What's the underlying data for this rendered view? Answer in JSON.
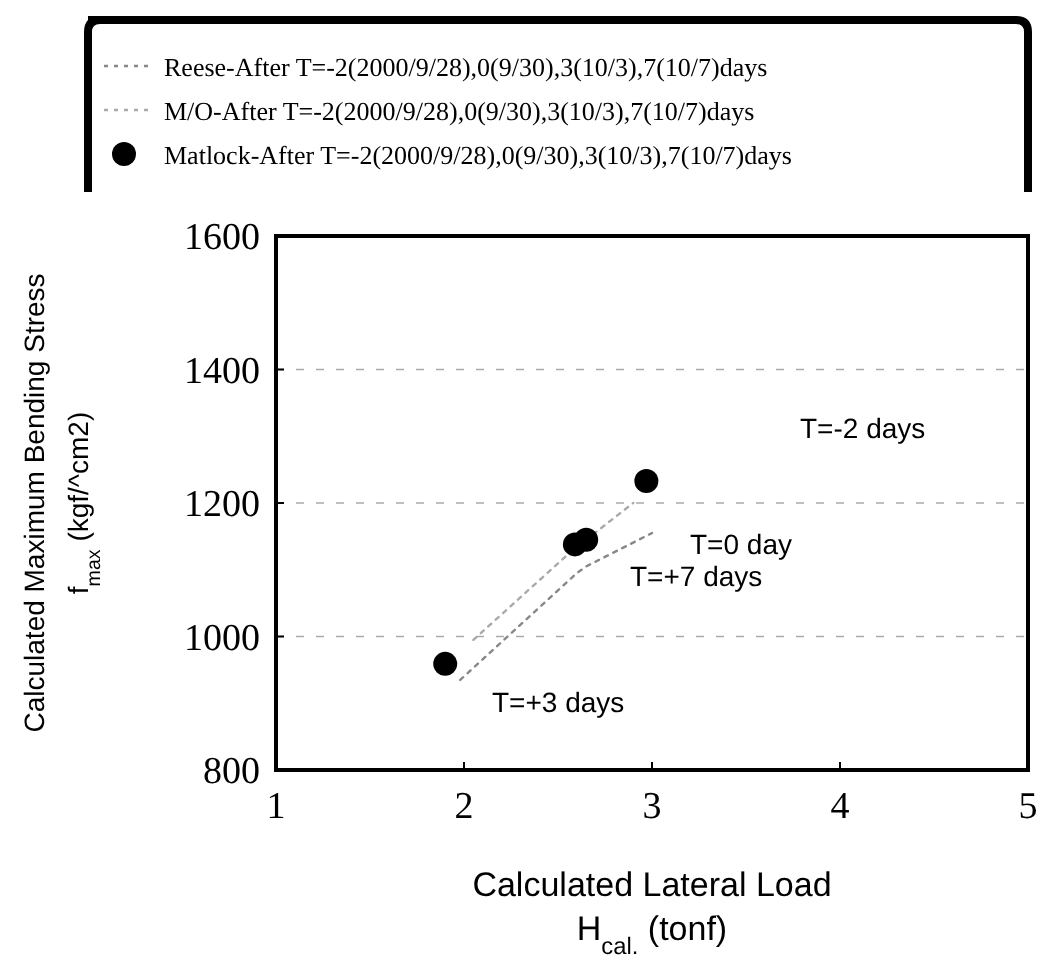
{
  "chart_data": {
    "type": "line",
    "xlabel": "Calculated Lateral Load\nH$_{cal.}$ (tonf)",
    "ylabel": "Calculated Maximum Bending Stress\nf$_{max}$ (kgf/^cm2)",
    "xlim": [
      1,
      5
    ],
    "xticks": [
      1,
      2,
      3,
      4,
      5
    ],
    "ylim": [
      800,
      1600
    ],
    "yticks": [
      800,
      1000,
      1200,
      1400,
      1600
    ],
    "grid": "y",
    "legend": "top",
    "series": [
      {
        "name": "Reese-After T=-2(2000/9/28),0(9/30),3(10/3),7(10/7)days",
        "line_style": "dotted",
        "marker": "none",
        "color": "#888888",
        "x": [
          1.98,
          2.6,
          2.65,
          3.0
        ],
        "values": [
          935,
          1095,
          1105,
          1155
        ]
      },
      {
        "name": "M/O-After T=-2(2000/9/28),0(9/30),3(10/3),7(10/7)days",
        "line_style": "dotted",
        "marker": "none",
        "color": "#aaaaaa",
        "x": [
          2.05,
          2.6,
          2.65,
          2.9
        ],
        "values": [
          995,
          1135,
          1145,
          1200
        ]
      },
      {
        "name": "Matlock-After T=-2(2000/9/28),0(9/30),3(10/3),7(10/7)days",
        "type": "scatter",
        "marker": "circle",
        "color": "#000000",
        "x": [
          2.97,
          2.65,
          1.9,
          2.59
        ],
        "values": [
          1233,
          1145,
          959,
          1138
        ]
      }
    ],
    "annotations": [
      "T=-2 days",
      "T=0 day",
      "T=+7 days",
      "T=+3 days"
    ]
  }
}
